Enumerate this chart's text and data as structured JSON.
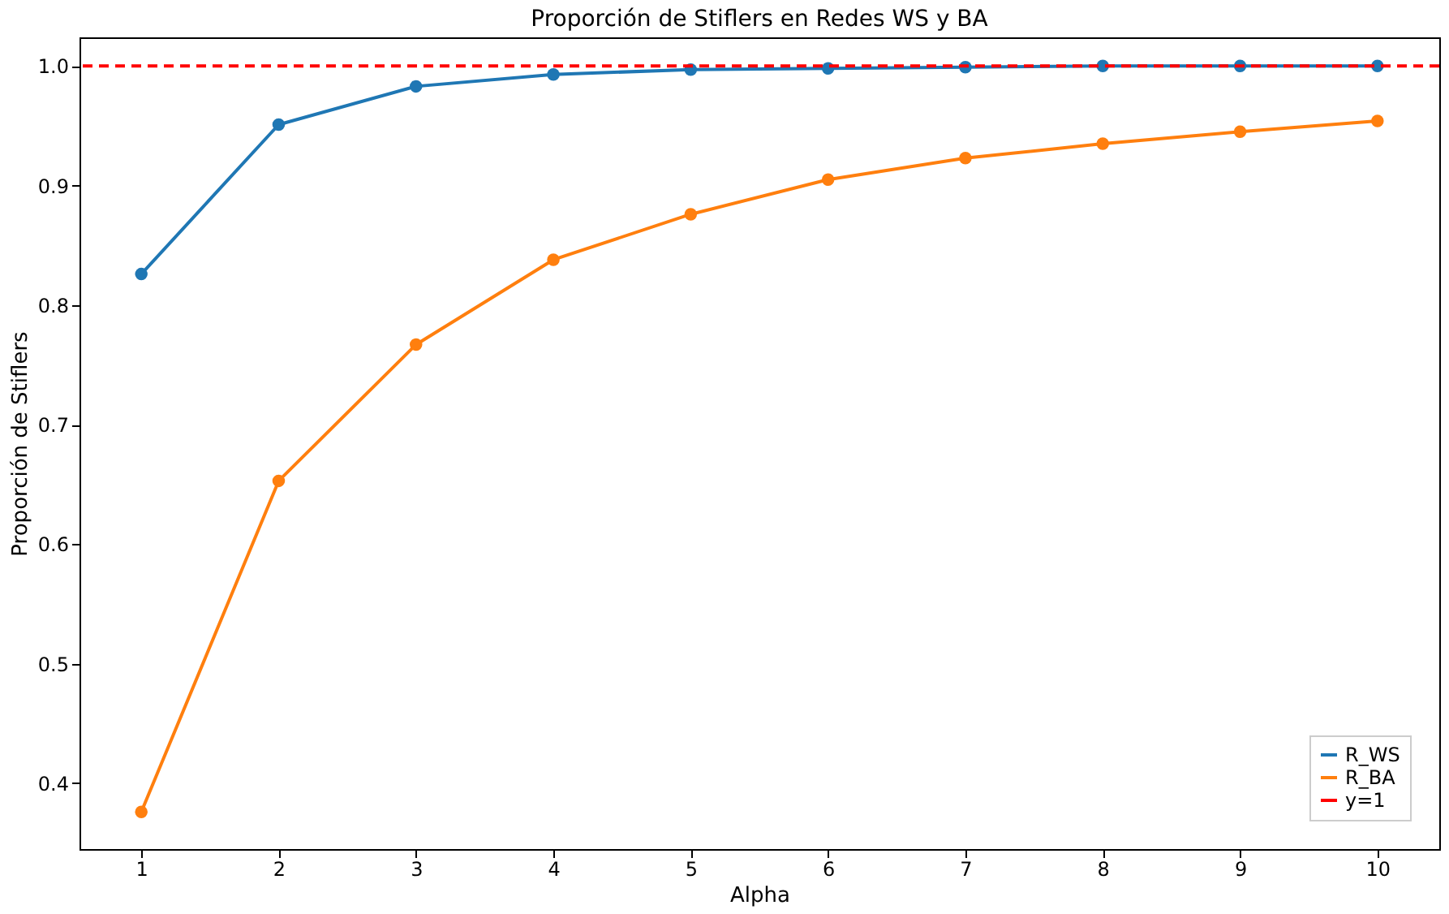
{
  "chart_data": {
    "type": "line",
    "title": "Proporción de Stiflers en Redes WS y BA",
    "xlabel": "Alpha",
    "ylabel": "Proporción de Stiflers",
    "x": [
      1,
      2,
      3,
      4,
      5,
      6,
      7,
      8,
      9,
      10
    ],
    "series": [
      {
        "name": "R_WS",
        "color": "#1f77b4",
        "values": [
          0.826,
          0.951,
          0.983,
          0.993,
          0.997,
          0.998,
          0.999,
          1.0,
          1.0,
          1.0
        ]
      },
      {
        "name": "R_BA",
        "color": "#ff7f0e",
        "values": [
          0.376,
          0.653,
          0.767,
          0.838,
          0.876,
          0.905,
          0.923,
          0.935,
          0.945,
          0.954
        ]
      }
    ],
    "ref_lines": [
      {
        "axis": "y",
        "value": 1.0,
        "label": "y=1",
        "color": "#ff0000",
        "line_style": "dashed"
      }
    ],
    "xlim": [
      0.55,
      10.45
    ],
    "xticks": [
      1,
      2,
      3,
      4,
      5,
      6,
      7,
      8,
      9,
      10
    ],
    "ylim": [
      0.345,
      1.024
    ],
    "yticks": [
      0.4,
      0.5,
      0.6,
      0.7,
      0.8,
      0.9,
      {
        "value": 1.0,
        "label": "1.0"
      }
    ],
    "marker": "circle",
    "line_style": "solid",
    "grid": false,
    "legend": "bottom right"
  }
}
